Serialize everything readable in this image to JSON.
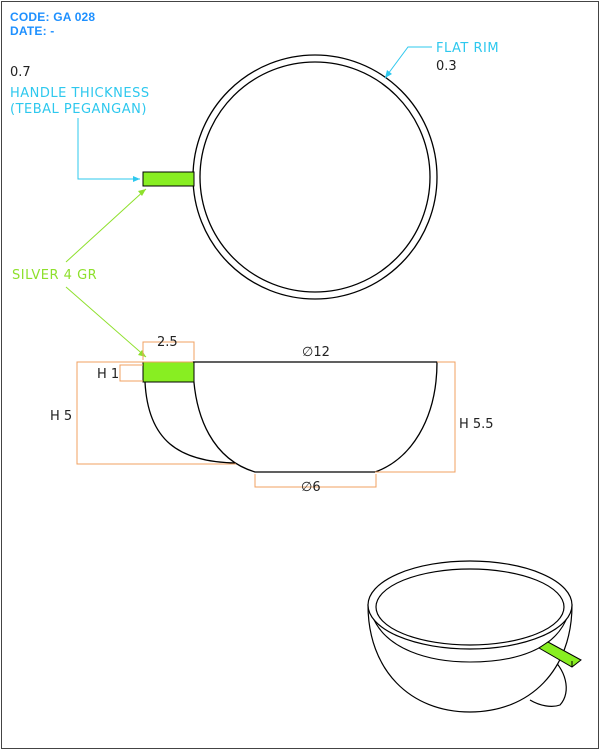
{
  "header": {
    "code": "CODE: GA 028",
    "date": "DATE: -"
  },
  "annotations": {
    "handle_value": "0.7",
    "handle_thickness_line1": "HANDLE THICKNESS",
    "handle_thickness_line2": "(TEBAL PEGANGAN)",
    "flat_rim_label": "FLAT RIM",
    "flat_rim_value": "0.3",
    "silver_label": "SILVER 4 GR"
  },
  "dimensions": {
    "handle_width": "2.5",
    "top_diameter": "∅12",
    "handle_height": "H 1",
    "cup_height_left": "H 5",
    "cup_height_right": "H 5.5",
    "base_diameter": "∅6"
  },
  "colors": {
    "dimension_line": "#f0a060",
    "leader_cyan": "#2ec8ee",
    "leader_green": "#8ee02c",
    "silver_fill": "#88ee22",
    "outline": "#000000"
  }
}
